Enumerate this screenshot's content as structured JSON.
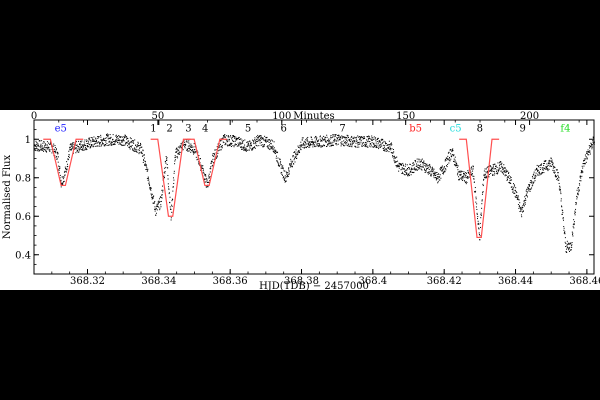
{
  "chart_data": {
    "type": "scatter",
    "xlabel": "HJD(TDB) − 2457000",
    "ylabel": "Normalised Flux",
    "top_axis_label": "Minutes",
    "xlim": [
      368.305,
      368.462
    ],
    "ylim": [
      0.3,
      1.1
    ],
    "top_xlim": [
      0,
      226
    ],
    "x_ticks": [
      "368.32",
      "368.34",
      "368.36",
      "368.38",
      "368.4",
      "368.42",
      "368.44",
      "368.46"
    ],
    "x_tick_values": [
      368.32,
      368.34,
      368.36,
      368.38,
      368.4,
      368.42,
      368.44,
      368.46
    ],
    "y_ticks": [
      "0.4",
      "0.6",
      "0.8",
      "1"
    ],
    "y_tick_values": [
      0.4,
      0.6,
      0.8,
      1.0
    ],
    "top_ticks": [
      "0",
      "50",
      "100",
      "150",
      "200"
    ],
    "top_tick_values": [
      0,
      50,
      100,
      150,
      200
    ],
    "colors": {
      "data": "#000000",
      "model": "#ff5050",
      "blue": "#2222ff",
      "red": "#ff2020",
      "cyan": "#22dddd",
      "green": "#22dd22",
      "black": "#000000"
    },
    "transit_labels": [
      {
        "text": "e5",
        "x": 368.3125,
        "color": "blue"
      },
      {
        "text": "1",
        "x": 368.3385,
        "color": "black"
      },
      {
        "text": "2",
        "x": 368.343,
        "color": "black"
      },
      {
        "text": "3",
        "x": 368.3483,
        "color": "black"
      },
      {
        "text": "4",
        "x": 368.353,
        "color": "black"
      },
      {
        "text": "5",
        "x": 368.365,
        "color": "black"
      },
      {
        "text": "6",
        "x": 368.375,
        "color": "black"
      },
      {
        "text": "7",
        "x": 368.3915,
        "color": "black"
      },
      {
        "text": "b5",
        "x": 368.412,
        "color": "red"
      },
      {
        "text": "c5",
        "x": 368.4232,
        "color": "cyan"
      },
      {
        "text": "8",
        "x": 368.43,
        "color": "black"
      },
      {
        "text": "9",
        "x": 368.442,
        "color": "black"
      },
      {
        "text": "f4",
        "x": 368.454,
        "color": "green"
      }
    ],
    "model_transits": [
      {
        "center": 368.3132,
        "depth": 0.76,
        "halfwidth": 0.002
      },
      {
        "center": 368.3433,
        "depth": 0.6,
        "halfwidth": 0.002
      },
      {
        "center": 368.3535,
        "depth": 0.76,
        "halfwidth": 0.002
      },
      {
        "center": 368.4298,
        "depth": 0.49,
        "halfwidth": 0.002
      }
    ],
    "light_curve_nodes": [
      [
        368.305,
        0.97
      ],
      [
        368.31,
        0.96
      ],
      [
        368.3115,
        0.92
      ],
      [
        368.3125,
        0.78
      ],
      [
        368.3135,
        0.82
      ],
      [
        368.315,
        0.95
      ],
      [
        368.32,
        0.98
      ],
      [
        368.325,
        1.0
      ],
      [
        368.33,
        1.0
      ],
      [
        368.335,
        0.95
      ],
      [
        368.337,
        0.8
      ],
      [
        368.339,
        0.63
      ],
      [
        368.3405,
        0.68
      ],
      [
        368.342,
        0.92
      ],
      [
        368.3433,
        0.6
      ],
      [
        368.3445,
        0.92
      ],
      [
        368.347,
        0.98
      ],
      [
        368.35,
        0.95
      ],
      [
        368.352,
        0.85
      ],
      [
        368.3535,
        0.76
      ],
      [
        368.355,
        0.9
      ],
      [
        368.358,
        1.0
      ],
      [
        368.362,
        0.99
      ],
      [
        368.365,
        0.96
      ],
      [
        368.368,
        1.0
      ],
      [
        368.372,
        0.97
      ],
      [
        368.374,
        0.86
      ],
      [
        368.3755,
        0.8
      ],
      [
        368.377,
        0.88
      ],
      [
        368.38,
        0.98
      ],
      [
        368.385,
        0.99
      ],
      [
        368.39,
        1.0
      ],
      [
        368.395,
        0.99
      ],
      [
        368.4,
        0.99
      ],
      [
        368.405,
        0.96
      ],
      [
        368.407,
        0.86
      ],
      [
        368.41,
        0.84
      ],
      [
        368.413,
        0.88
      ],
      [
        368.416,
        0.84
      ],
      [
        368.418,
        0.8
      ],
      [
        368.42,
        0.86
      ],
      [
        368.422,
        0.94
      ],
      [
        368.424,
        0.82
      ],
      [
        368.426,
        0.8
      ],
      [
        368.428,
        0.84
      ],
      [
        368.4298,
        0.49
      ],
      [
        368.431,
        0.82
      ],
      [
        368.433,
        0.84
      ],
      [
        368.436,
        0.86
      ],
      [
        368.438,
        0.8
      ],
      [
        368.44,
        0.72
      ],
      [
        368.4415,
        0.62
      ],
      [
        368.443,
        0.72
      ],
      [
        368.446,
        0.84
      ],
      [
        368.45,
        0.88
      ],
      [
        368.452,
        0.8
      ],
      [
        368.454,
        0.44
      ],
      [
        368.4555,
        0.45
      ],
      [
        368.457,
        0.7
      ],
      [
        368.459,
        0.88
      ],
      [
        368.462,
        1.0
      ]
    ]
  }
}
